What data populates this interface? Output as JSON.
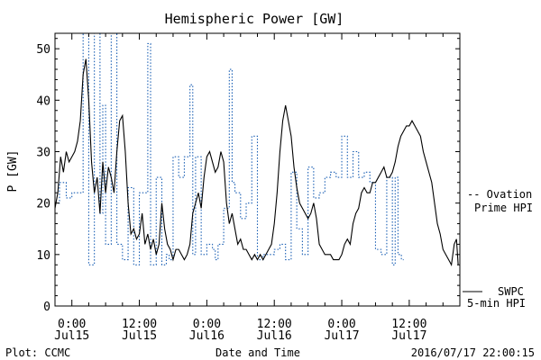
{
  "colors": {
    "swpc": "#000000",
    "ovation": "#1a5fb4",
    "axis": "#000000"
  },
  "chart_data": {
    "type": "line",
    "title": "Hemispheric Power [GW]",
    "ylabel": "P [GW]",
    "xlabel": "Date and Time",
    "xlim": [
      -3,
      69
    ],
    "ylim": [
      0,
      53
    ],
    "y_ticks": [
      0,
      10,
      20,
      30,
      40,
      50
    ],
    "x_ticks": [
      {
        "x": 0,
        "time": "0:00",
        "date": "Jul15"
      },
      {
        "x": 12,
        "time": "12:00",
        "date": "Jul15"
      },
      {
        "x": 24,
        "time": "0:00",
        "date": "Jul16"
      },
      {
        "x": 36,
        "time": "12:00",
        "date": "Jul16"
      },
      {
        "x": 48,
        "time": "0:00",
        "date": "Jul17"
      },
      {
        "x": 60,
        "time": "12:00",
        "date": "Jul17"
      }
    ],
    "series": [
      {
        "name": "Ovation Prime HPI",
        "style": "dotted-step",
        "color": "#1a5fb4",
        "points": [
          [
            -3,
            20
          ],
          [
            -2.2,
            24
          ],
          [
            -1,
            21
          ],
          [
            0,
            22
          ],
          [
            1,
            22
          ],
          [
            2,
            53
          ],
          [
            3,
            8
          ],
          [
            4,
            53
          ],
          [
            5,
            18
          ],
          [
            5.5,
            39
          ],
          [
            6,
            12
          ],
          [
            7,
            53
          ],
          [
            8,
            12
          ],
          [
            9,
            9
          ],
          [
            10,
            23
          ],
          [
            11,
            8
          ],
          [
            12,
            22
          ],
          [
            12.8,
            22
          ],
          [
            13.5,
            51
          ],
          [
            14,
            8
          ],
          [
            15,
            25
          ],
          [
            16,
            8
          ],
          [
            16.8,
            10
          ],
          [
            17.3,
            9
          ],
          [
            18,
            29
          ],
          [
            19,
            25
          ],
          [
            20,
            29
          ],
          [
            21,
            43
          ],
          [
            21.5,
            10
          ],
          [
            22,
            29
          ],
          [
            23,
            10
          ],
          [
            24,
            12
          ],
          [
            25,
            11
          ],
          [
            25.5,
            9
          ],
          [
            26,
            12
          ],
          [
            27,
            19
          ],
          [
            28,
            46
          ],
          [
            28.5,
            24
          ],
          [
            29,
            22
          ],
          [
            30,
            17
          ],
          [
            31,
            20
          ],
          [
            32,
            33
          ],
          [
            33,
            9
          ],
          [
            34,
            10
          ],
          [
            35,
            10
          ],
          [
            36,
            11
          ],
          [
            37,
            12
          ],
          [
            38,
            9
          ],
          [
            39,
            26
          ],
          [
            40,
            15
          ],
          [
            41,
            10
          ],
          [
            42,
            27
          ],
          [
            43,
            21
          ],
          [
            44,
            22
          ],
          [
            45,
            25
          ],
          [
            46,
            26
          ],
          [
            47,
            25
          ],
          [
            48,
            33
          ],
          [
            49,
            25
          ],
          [
            50,
            30
          ],
          [
            51,
            25
          ],
          [
            52,
            26
          ],
          [
            53,
            24
          ],
          [
            54,
            11
          ],
          [
            55,
            10
          ],
          [
            56,
            25
          ],
          [
            57,
            8
          ],
          [
            57.5,
            25
          ],
          [
            58,
            10
          ],
          [
            58.6,
            9
          ]
        ]
      },
      {
        "name": "SWPC 5-min HPI",
        "style": "solid",
        "color": "#000000",
        "points": [
          [
            -3,
            19
          ],
          [
            -2.5,
            22
          ],
          [
            -2,
            29
          ],
          [
            -1.5,
            26
          ],
          [
            -1,
            30
          ],
          [
            -0.5,
            28
          ],
          [
            0,
            29
          ],
          [
            0.5,
            30
          ],
          [
            1,
            32
          ],
          [
            1.5,
            36
          ],
          [
            2,
            45
          ],
          [
            2.5,
            48
          ],
          [
            3,
            40
          ],
          [
            3.5,
            28
          ],
          [
            4,
            22
          ],
          [
            4.5,
            25
          ],
          [
            5,
            18
          ],
          [
            5.5,
            28
          ],
          [
            6,
            22
          ],
          [
            6.5,
            27
          ],
          [
            7,
            25
          ],
          [
            7.5,
            22
          ],
          [
            8,
            30
          ],
          [
            8.5,
            36
          ],
          [
            9,
            37
          ],
          [
            9.5,
            30
          ],
          [
            10,
            20
          ],
          [
            10.5,
            14
          ],
          [
            11,
            15
          ],
          [
            11.5,
            13
          ],
          [
            12,
            14
          ],
          [
            12.5,
            18
          ],
          [
            13,
            12
          ],
          [
            13.5,
            14
          ],
          [
            14,
            11
          ],
          [
            14.5,
            13
          ],
          [
            15,
            10
          ],
          [
            15.5,
            12
          ],
          [
            16,
            20
          ],
          [
            16.5,
            15
          ],
          [
            17,
            12
          ],
          [
            17.5,
            11
          ],
          [
            18,
            9
          ],
          [
            18.5,
            11
          ],
          [
            19,
            11
          ],
          [
            19.5,
            10
          ],
          [
            20,
            9
          ],
          [
            20.5,
            10
          ],
          [
            21,
            12
          ],
          [
            21.5,
            18
          ],
          [
            22,
            20
          ],
          [
            22.5,
            22
          ],
          [
            23,
            19
          ],
          [
            23.5,
            25
          ],
          [
            24,
            29
          ],
          [
            24.5,
            30
          ],
          [
            25,
            28
          ],
          [
            25.5,
            26
          ],
          [
            26,
            27
          ],
          [
            26.5,
            30
          ],
          [
            27,
            28
          ],
          [
            27.5,
            20
          ],
          [
            28,
            16
          ],
          [
            28.5,
            18
          ],
          [
            29,
            15
          ],
          [
            29.5,
            12
          ],
          [
            30,
            13
          ],
          [
            30.5,
            11
          ],
          [
            31,
            11
          ],
          [
            31.5,
            10
          ],
          [
            32,
            9
          ],
          [
            32.5,
            10
          ],
          [
            33,
            9
          ],
          [
            33.5,
            10
          ],
          [
            34,
            9
          ],
          [
            34.5,
            10
          ],
          [
            35,
            11
          ],
          [
            35.5,
            12
          ],
          [
            36,
            16
          ],
          [
            36.5,
            22
          ],
          [
            37,
            30
          ],
          [
            37.5,
            36
          ],
          [
            38,
            39
          ],
          [
            38.5,
            36
          ],
          [
            39,
            33
          ],
          [
            39.5,
            27
          ],
          [
            40,
            23
          ],
          [
            40.5,
            20
          ],
          [
            41,
            19
          ],
          [
            41.5,
            18
          ],
          [
            42,
            17
          ],
          [
            42.5,
            18
          ],
          [
            43,
            20
          ],
          [
            43.5,
            17
          ],
          [
            44,
            12
          ],
          [
            44.5,
            11
          ],
          [
            45,
            10
          ],
          [
            45.5,
            10
          ],
          [
            46,
            10
          ],
          [
            46.5,
            9
          ],
          [
            47,
            9
          ],
          [
            47.5,
            9
          ],
          [
            48,
            10
          ],
          [
            48.5,
            12
          ],
          [
            49,
            13
          ],
          [
            49.5,
            12
          ],
          [
            50,
            16
          ],
          [
            50.5,
            18
          ],
          [
            51,
            19
          ],
          [
            51.5,
            22
          ],
          [
            52,
            23
          ],
          [
            52.5,
            22
          ],
          [
            53,
            22
          ],
          [
            53.5,
            24
          ],
          [
            54,
            24
          ],
          [
            54.5,
            25
          ],
          [
            55,
            26
          ],
          [
            55.5,
            27
          ],
          [
            56,
            25
          ],
          [
            56.5,
            25
          ],
          [
            57,
            26
          ],
          [
            57.5,
            28
          ],
          [
            58,
            31
          ],
          [
            58.5,
            33
          ],
          [
            59,
            34
          ],
          [
            59.5,
            35
          ],
          [
            60,
            35
          ],
          [
            60.5,
            36
          ],
          [
            61,
            35
          ],
          [
            61.5,
            34
          ],
          [
            62,
            33
          ],
          [
            62.5,
            30
          ],
          [
            63,
            28
          ],
          [
            63.5,
            26
          ],
          [
            64,
            24
          ],
          [
            64.5,
            20
          ],
          [
            65,
            16
          ],
          [
            65.5,
            14
          ],
          [
            66,
            11
          ],
          [
            66.5,
            10
          ],
          [
            67,
            9
          ],
          [
            67.5,
            8
          ],
          [
            68,
            12
          ],
          [
            68.4,
            13
          ],
          [
            68.7,
            8
          ]
        ]
      }
    ],
    "legend": {
      "placement": "right",
      "ovation": [
        "-- Ovation",
        "Prime HPI"
      ],
      "swpc": [
        "SWPC",
        "5-min HPI"
      ]
    }
  },
  "footer": {
    "left": "Plot: CCMC",
    "center": "Date and Time",
    "right": "2016/07/17 22:00:15"
  }
}
